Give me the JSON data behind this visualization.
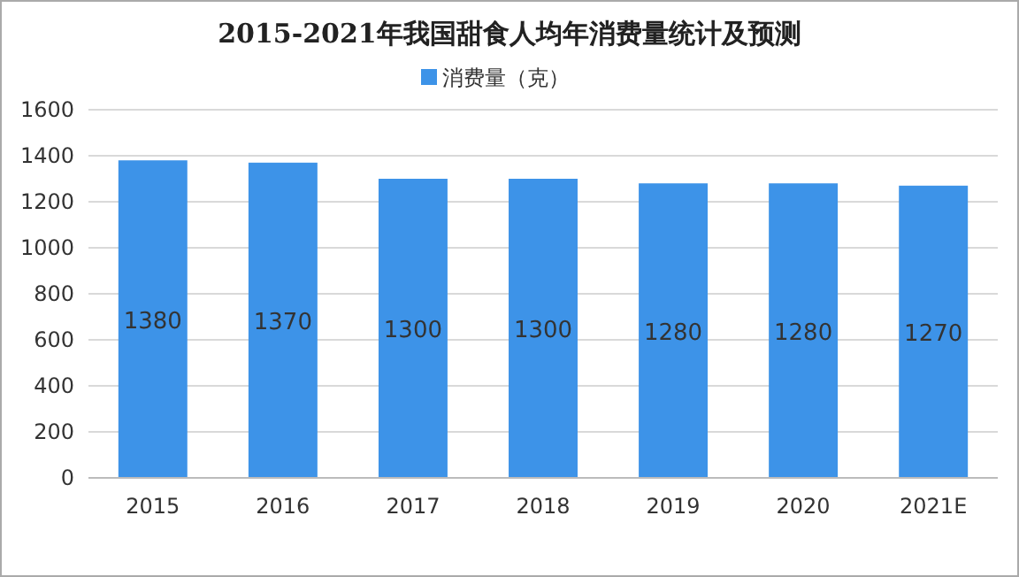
{
  "chart_data": {
    "type": "bar",
    "title": "2015-2021年我国甜食人均年消费量统计及预测",
    "categories": [
      "2015",
      "2016",
      "2017",
      "2018",
      "2019",
      "2020",
      "2021E"
    ],
    "series": [
      {
        "name": "消费量（克）",
        "color": "#3d93e8",
        "values": [
          1380,
          1370,
          1300,
          1300,
          1280,
          1280,
          1270
        ]
      }
    ],
    "ylim": [
      0,
      1600
    ],
    "yticks": [
      0,
      200,
      400,
      600,
      800,
      1000,
      1200,
      1400,
      1600
    ],
    "grid": "y",
    "legend": "top",
    "data_labels": true
  }
}
